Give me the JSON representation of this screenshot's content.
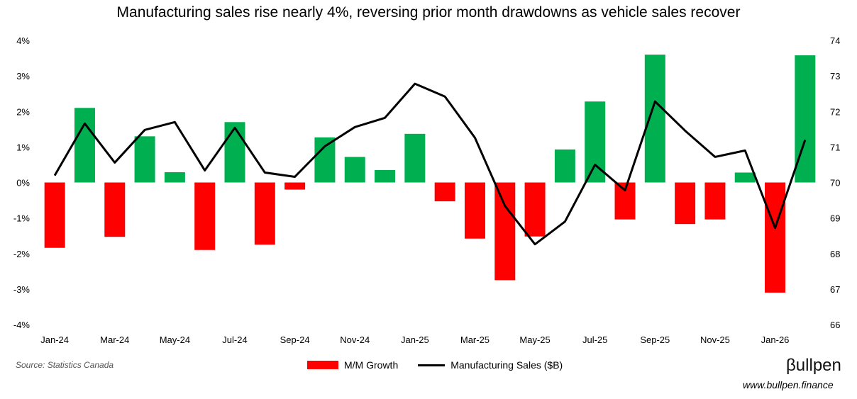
{
  "chart_data": {
    "type": "bar+line",
    "title": "Manufacturing sales rise nearly 4%, reversing prior month drawdowns as vehicle sales recover",
    "categories": [
      "Jan-24",
      "Feb-24",
      "Mar-24",
      "Apr-24",
      "May-24",
      "Jun-24",
      "Jul-24",
      "Aug-24",
      "Sep-24",
      "Oct-24",
      "Nov-24",
      "Dec-24",
      "Jan-25",
      "Feb-25",
      "Mar-25",
      "Apr-25",
      "May-25",
      "Jun-25",
      "Jul-25",
      "Aug-25",
      "Sep-25",
      "Oct-25",
      "Nov-25",
      "Dec-25",
      "Jan-26",
      "Feb-26"
    ],
    "x_tick_labels": [
      "Jan-24",
      "Mar-24",
      "May-24",
      "Jul-24",
      "Sep-24",
      "Nov-24",
      "Jan-25",
      "Mar-25",
      "May-25",
      "Jul-25",
      "Sep-25",
      "Nov-25",
      "Jan-26"
    ],
    "series": [
      {
        "name": "M/M Growth",
        "type": "bar",
        "axis": "left",
        "unit": "%",
        "values": [
          -1.84,
          2.1,
          -1.53,
          1.3,
          0.29,
          -1.9,
          1.7,
          -1.75,
          -0.2,
          1.27,
          0.72,
          0.35,
          1.37,
          -0.53,
          -1.58,
          -2.75,
          -1.52,
          0.93,
          2.28,
          -1.04,
          3.6,
          -1.17,
          -1.04,
          0.28,
          -3.1,
          3.58
        ],
        "positive_color": "#00b050",
        "negative_color": "#ff0000"
      },
      {
        "name": "Manufacturing Sales ($B)",
        "type": "line",
        "axis": "right",
        "values": [
          70.2,
          71.66,
          70.56,
          71.48,
          71.7,
          70.34,
          71.54,
          70.28,
          70.16,
          71.02,
          71.56,
          71.82,
          72.78,
          72.42,
          71.26,
          69.34,
          68.26,
          68.9,
          70.5,
          69.78,
          72.28,
          71.46,
          70.72,
          70.9,
          68.72,
          71.2
        ],
        "color": "#000000"
      }
    ],
    "y_left": {
      "range": [
        -4,
        4
      ],
      "ticks": [
        "-4%",
        "-3%",
        "-2%",
        "-1%",
        "0%",
        "1%",
        "2%",
        "3%",
        "4%"
      ]
    },
    "y_right": {
      "range": [
        66,
        74
      ],
      "ticks": [
        "66",
        "67",
        "68",
        "69",
        "70",
        "71",
        "72",
        "73",
        "74"
      ]
    },
    "grid": false,
    "legend_placement": "bottom"
  },
  "footer": {
    "source": "Source: Statistics Canada",
    "logo": "βullpen",
    "url": "www.bullpen.finance"
  }
}
